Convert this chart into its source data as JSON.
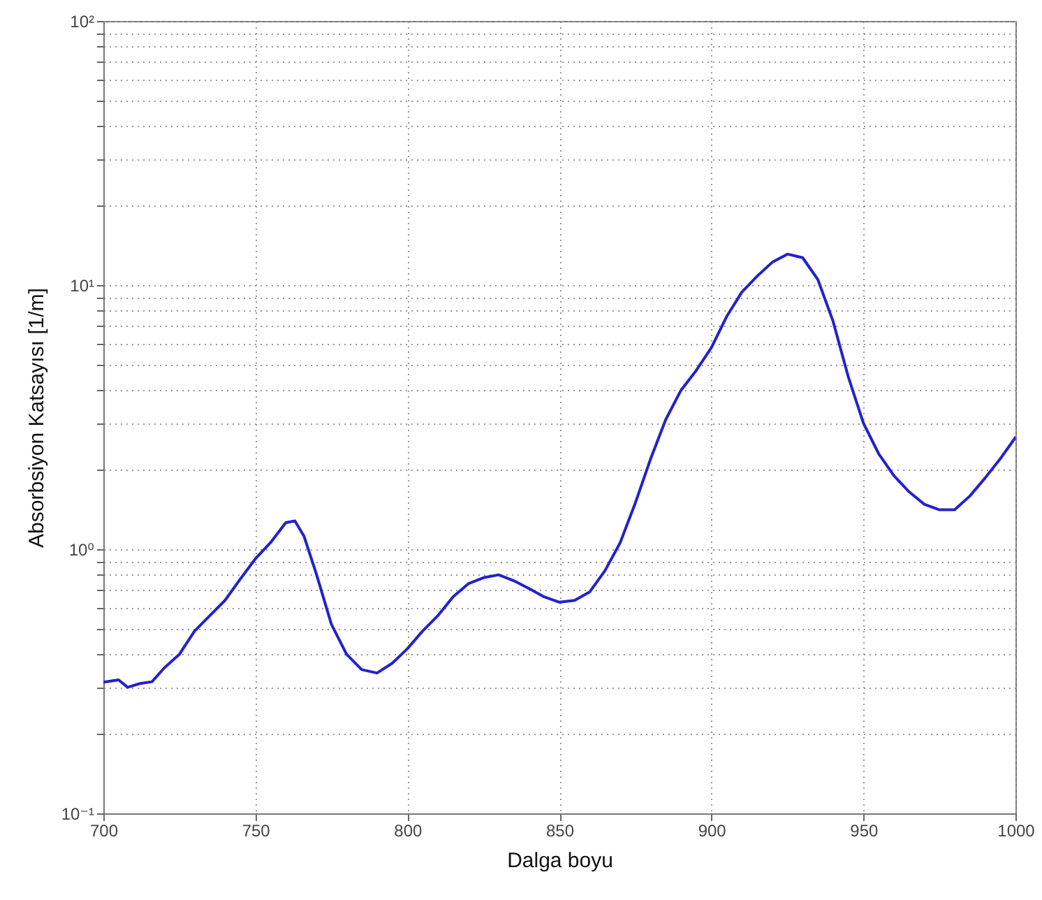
{
  "chart_data": {
    "type": "line",
    "xlabel": "Dalga boyu",
    "ylabel": "Absorbsiyon Katsayısı [1/m]",
    "log": "y",
    "grid": true,
    "line_style": "solid",
    "xlim": [
      700,
      1000
    ],
    "xticks": [
      700,
      750,
      800,
      850,
      900,
      950,
      1000
    ],
    "ylim": [
      0.1,
      100
    ],
    "yticks": [
      {
        "value": 0.1,
        "label": "10⁻¹"
      },
      {
        "value": 0.2,
        "label": null
      },
      {
        "value": 0.3,
        "label": null
      },
      {
        "value": 0.4,
        "label": null
      },
      {
        "value": 0.5,
        "label": null
      },
      {
        "value": 0.6,
        "label": null
      },
      {
        "value": 0.7,
        "label": null
      },
      {
        "value": 0.8,
        "label": null
      },
      {
        "value": 0.9,
        "label": null
      },
      {
        "value": 1,
        "label": "10⁰"
      },
      {
        "value": 2,
        "label": null
      },
      {
        "value": 3,
        "label": null
      },
      {
        "value": 4,
        "label": null
      },
      {
        "value": 5,
        "label": null
      },
      {
        "value": 6,
        "label": null
      },
      {
        "value": 7,
        "label": null
      },
      {
        "value": 8,
        "label": null
      },
      {
        "value": 9,
        "label": null
      },
      {
        "value": 10,
        "label": "10¹"
      },
      {
        "value": 20,
        "label": null
      },
      {
        "value": 30,
        "label": null
      },
      {
        "value": 40,
        "label": null
      },
      {
        "value": 50,
        "label": null
      },
      {
        "value": 60,
        "label": null
      },
      {
        "value": 70,
        "label": null
      },
      {
        "value": 80,
        "label": null
      },
      {
        "value": 90,
        "label": null
      },
      {
        "value": 100,
        "label": "10²"
      }
    ],
    "x": [
      700,
      705,
      708,
      712,
      716,
      720,
      725,
      730,
      735,
      740,
      745,
      750,
      755,
      760,
      763,
      766,
      770,
      775,
      780,
      785,
      790,
      795,
      800,
      805,
      810,
      815,
      820,
      825,
      830,
      835,
      840,
      845,
      850,
      855,
      860,
      865,
      870,
      875,
      880,
      885,
      890,
      895,
      900,
      905,
      910,
      915,
      920,
      925,
      930,
      935,
      940,
      945,
      950,
      955,
      960,
      965,
      970,
      975,
      980,
      985,
      990,
      995,
      1000
    ],
    "series": [
      {
        "color": "#2222cc",
        "values": [
          0.314,
          0.32,
          0.3,
          0.31,
          0.315,
          0.355,
          0.4,
          0.49,
          0.56,
          0.64,
          0.77,
          0.92,
          1.06,
          1.26,
          1.28,
          1.12,
          0.81,
          0.52,
          0.4,
          0.35,
          0.34,
          0.37,
          0.42,
          0.49,
          0.56,
          0.66,
          0.74,
          0.78,
          0.8,
          0.76,
          0.71,
          0.66,
          0.63,
          0.64,
          0.69,
          0.83,
          1.06,
          1.5,
          2.2,
          3.1,
          4.0,
          4.75,
          5.8,
          7.6,
          9.4,
          10.8,
          12.2,
          13.1,
          12.7,
          10.5,
          7.3,
          4.5,
          3.0,
          2.3,
          1.9,
          1.65,
          1.48,
          1.41,
          1.41,
          1.59,
          1.86,
          2.2,
          2.65
        ]
      }
    ]
  }
}
